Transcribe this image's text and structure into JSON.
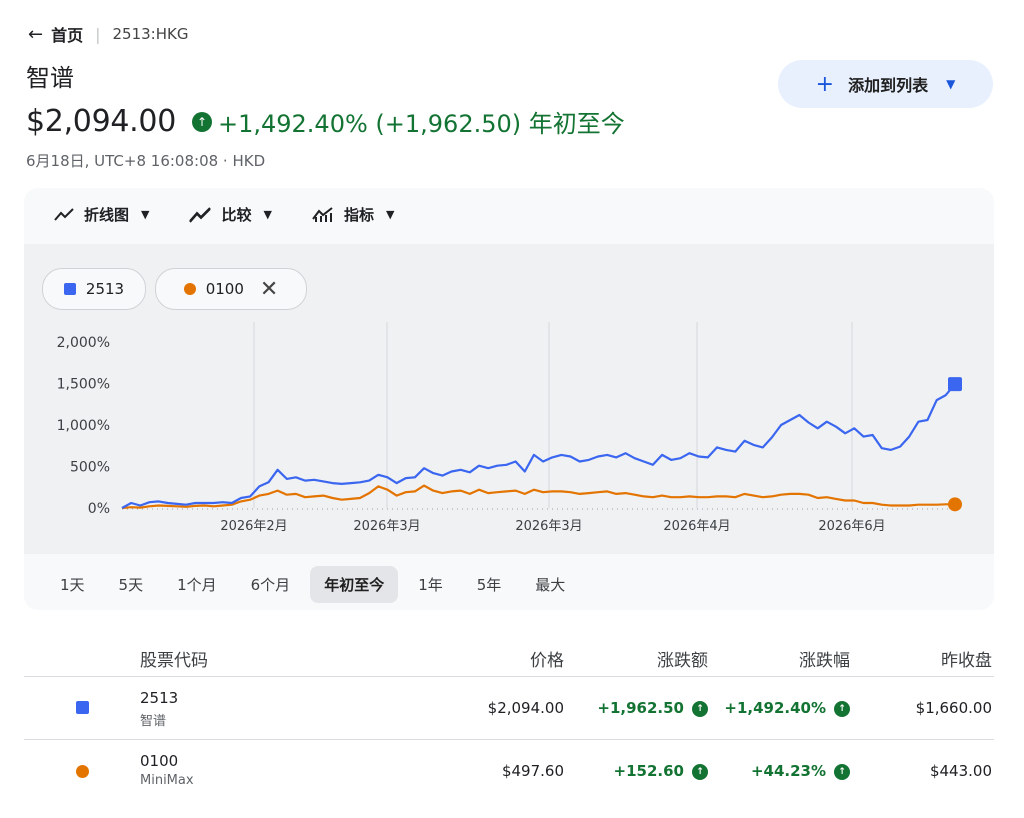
{
  "breadcrumb": {
    "home": "首页",
    "ticker": "2513:HKG"
  },
  "stock": {
    "name": "智谱",
    "price": "$2,094.00",
    "change": "+1,492.40% (+1,962.50) 年初至今",
    "meta": "6月18日, UTC+8 16:08:08 · HKD"
  },
  "add_button": {
    "label": "添加到列表"
  },
  "toolbar": {
    "line_chart": "折线图",
    "compare": "比较",
    "indicators": "指标"
  },
  "chips": [
    {
      "label": "2513",
      "color": "#3a66f0"
    },
    {
      "label": "0100",
      "color": "#e37400"
    }
  ],
  "ranges": [
    "1天",
    "5天",
    "1个月",
    "6个月",
    "年初至今",
    "1年",
    "5年",
    "最大"
  ],
  "active_range": "年初至今",
  "chart_data": {
    "type": "line",
    "ylim": [
      0,
      2000
    ],
    "y_ticks": [
      "2,000%",
      "1,500%",
      "1,000%",
      "500%",
      "0%"
    ],
    "x_tick_labels": [
      "2026年2月",
      "2026年3月",
      "2026年3月",
      "2026年4月",
      "2026年6月"
    ],
    "colors": {
      "2513": "#3a66f0",
      "0100": "#e37400"
    },
    "series": [
      {
        "name": "2513",
        "values": [
          0,
          60,
          30,
          70,
          80,
          60,
          50,
          40,
          60,
          60,
          60,
          70,
          60,
          120,
          140,
          260,
          310,
          460,
          350,
          370,
          330,
          340,
          320,
          300,
          290,
          300,
          310,
          330,
          400,
          370,
          300,
          360,
          370,
          480,
          420,
          390,
          440,
          460,
          430,
          510,
          480,
          510,
          520,
          560,
          440,
          640,
          560,
          610,
          640,
          620,
          560,
          580,
          620,
          640,
          610,
          660,
          600,
          560,
          520,
          640,
          580,
          600,
          660,
          620,
          610,
          730,
          700,
          680,
          810,
          760,
          730,
          850,
          1000,
          1060,
          1120,
          1030,
          960,
          1040,
          980,
          900,
          960,
          860,
          880,
          720,
          700,
          740,
          860,
          1040,
          1060,
          1300,
          1360,
          1492.4
        ]
      },
      {
        "name": "0100",
        "values": [
          0,
          10,
          5,
          20,
          30,
          25,
          20,
          15,
          25,
          30,
          20,
          30,
          40,
          80,
          100,
          150,
          170,
          210,
          160,
          170,
          130,
          140,
          150,
          120,
          100,
          110,
          120,
          180,
          260,
          220,
          150,
          190,
          200,
          270,
          210,
          180,
          200,
          210,
          170,
          220,
          180,
          190,
          200,
          210,
          170,
          220,
          190,
          200,
          200,
          190,
          170,
          180,
          190,
          200,
          170,
          180,
          160,
          140,
          130,
          150,
          130,
          130,
          140,
          130,
          130,
          140,
          140,
          130,
          170,
          150,
          130,
          140,
          160,
          170,
          170,
          160,
          120,
          130,
          110,
          90,
          90,
          60,
          60,
          40,
          30,
          30,
          30,
          40,
          40,
          40,
          44.23,
          44.23
        ]
      }
    ]
  },
  "table": {
    "headers": [
      "股票代码",
      "价格",
      "涨跌额",
      "涨跌幅",
      "昨收盘"
    ],
    "rows": [
      {
        "ticker": "2513",
        "name": "智谱",
        "price": "$2,094.00",
        "change": "+1,962.50",
        "pct": "+1,492.40%",
        "prev": "$1,660.00"
      },
      {
        "ticker": "0100",
        "name": "MiniMax",
        "price": "$497.60",
        "change": "+152.60",
        "pct": "+44.23%",
        "prev": "$443.00"
      }
    ]
  }
}
